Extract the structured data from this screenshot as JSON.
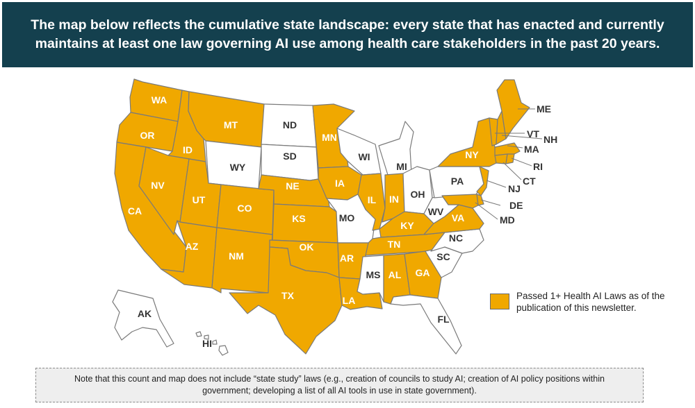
{
  "header": {
    "text": "The map below reflects the cumulative state landscape: every state that has enacted and currently maintains at least one law governing AI use among health care stakeholders in the past 20 years."
  },
  "colors": {
    "passed": "#f0a800",
    "not_passed": "#ffffff",
    "border": "#7a7a7a",
    "header_bg": "#14404e"
  },
  "states": [
    {
      "code": "WA",
      "passed": true
    },
    {
      "code": "OR",
      "passed": true
    },
    {
      "code": "CA",
      "passed": true
    },
    {
      "code": "ID",
      "passed": true
    },
    {
      "code": "NV",
      "passed": true
    },
    {
      "code": "MT",
      "passed": true
    },
    {
      "code": "WY",
      "passed": false
    },
    {
      "code": "UT",
      "passed": true
    },
    {
      "code": "AZ",
      "passed": true
    },
    {
      "code": "CO",
      "passed": true
    },
    {
      "code": "NM",
      "passed": true
    },
    {
      "code": "ND",
      "passed": false
    },
    {
      "code": "SD",
      "passed": false
    },
    {
      "code": "NE",
      "passed": true
    },
    {
      "code": "KS",
      "passed": true
    },
    {
      "code": "OK",
      "passed": true
    },
    {
      "code": "TX",
      "passed": true
    },
    {
      "code": "MN",
      "passed": true
    },
    {
      "code": "IA",
      "passed": true
    },
    {
      "code": "MO",
      "passed": false
    },
    {
      "code": "AR",
      "passed": true
    },
    {
      "code": "LA",
      "passed": true
    },
    {
      "code": "WI",
      "passed": false
    },
    {
      "code": "IL",
      "passed": true
    },
    {
      "code": "MI",
      "passed": false
    },
    {
      "code": "IN",
      "passed": true
    },
    {
      "code": "OH",
      "passed": false
    },
    {
      "code": "KY",
      "passed": true
    },
    {
      "code": "TN",
      "passed": true
    },
    {
      "code": "MS",
      "passed": false
    },
    {
      "code": "AL",
      "passed": true
    },
    {
      "code": "GA",
      "passed": true
    },
    {
      "code": "FL",
      "passed": false
    },
    {
      "code": "SC",
      "passed": false
    },
    {
      "code": "NC",
      "passed": false
    },
    {
      "code": "VA",
      "passed": true
    },
    {
      "code": "WV",
      "passed": false
    },
    {
      "code": "PA",
      "passed": false
    },
    {
      "code": "NY",
      "passed": true
    },
    {
      "code": "VT",
      "passed": true
    },
    {
      "code": "NH",
      "passed": true
    },
    {
      "code": "ME",
      "passed": true
    },
    {
      "code": "MA",
      "passed": true
    },
    {
      "code": "RI",
      "passed": true
    },
    {
      "code": "CT",
      "passed": true
    },
    {
      "code": "NJ",
      "passed": true
    },
    {
      "code": "DE",
      "passed": true
    },
    {
      "code": "MD",
      "passed": true
    },
    {
      "code": "AK",
      "passed": false
    },
    {
      "code": "HI",
      "passed": false
    }
  ],
  "legend": {
    "label": "Passed 1+ Health AI Laws as of the publication of this newsletter."
  },
  "note": {
    "text": "Note that this count and map does not include “state study” laws (e.g., creation of councils to study AI; creation of AI policy positions within government; developing a list of all AI tools in use in state government)."
  }
}
